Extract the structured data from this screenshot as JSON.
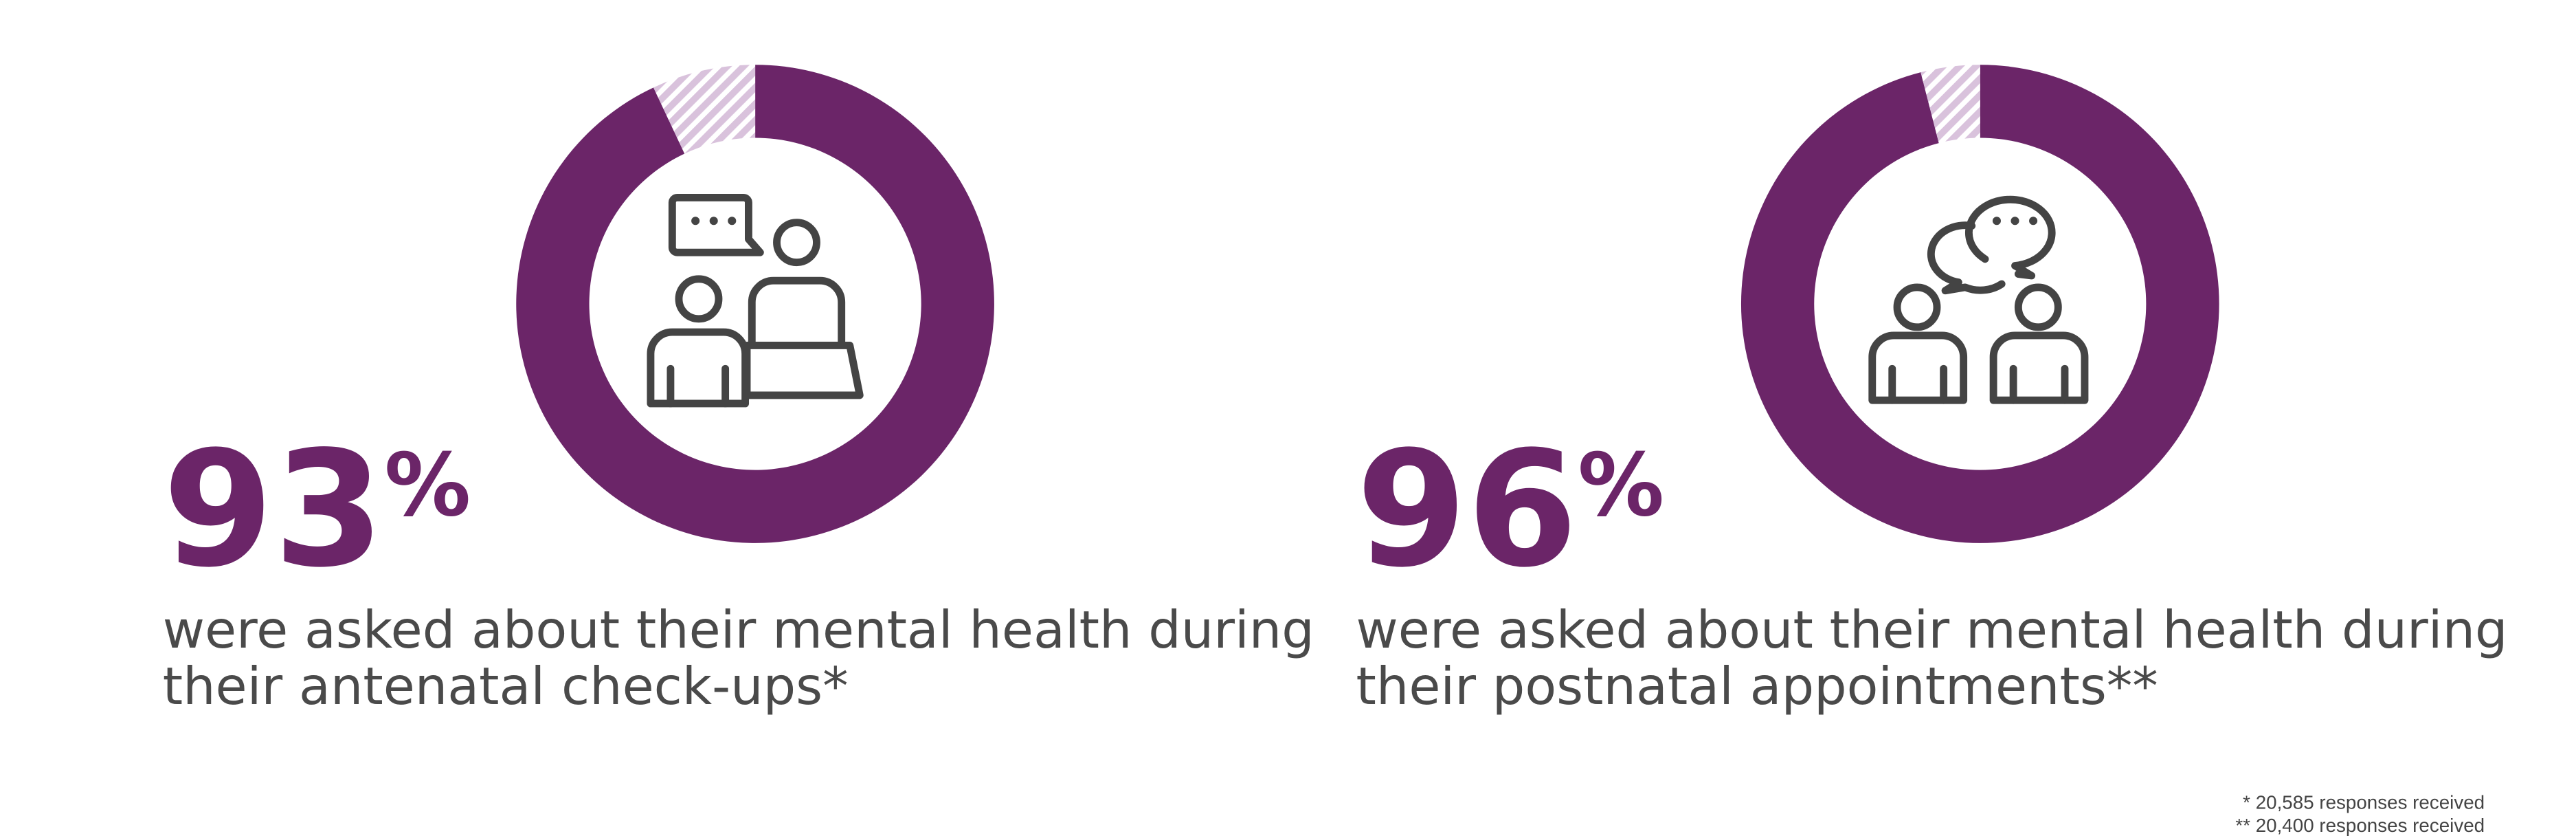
{
  "chart_data": [
    {
      "type": "donut",
      "values": [
        93,
        7
      ],
      "value_labels": [
        "93%",
        null
      ],
      "colors": [
        "#6b2568",
        "#d9c2dc"
      ],
      "hatched": [
        false,
        true
      ],
      "caption": [
        "were asked about their mental health during",
        "their antenatal check-ups*"
      ]
    },
    {
      "type": "donut",
      "values": [
        96,
        4
      ],
      "value_labels": [
        "96%",
        null
      ],
      "colors": [
        "#6b2568",
        "#d9c2dc"
      ],
      "hatched": [
        false,
        true
      ],
      "caption": [
        "were asked about their mental health during",
        "their postnatal appointments**"
      ]
    }
  ],
  "footnotes": [
    "* 20,585 responses received",
    "** 20,400 responses received"
  ]
}
